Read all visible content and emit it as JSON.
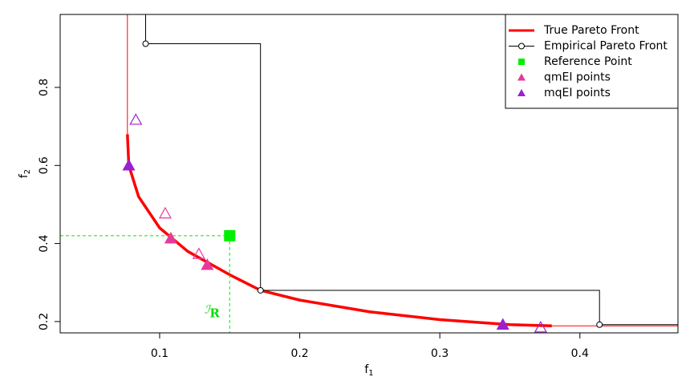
{
  "chart_data": {
    "type": "scatter",
    "xlabel": "f",
    "xlabel_sub": "1",
    "ylabel": "f",
    "ylabel_sub": "2",
    "xlim": [
      0.029,
      0.47
    ],
    "ylim": [
      0.171,
      0.987
    ],
    "xticks": [
      0.1,
      0.2,
      0.3,
      0.4
    ],
    "yticks": [
      0.2,
      0.4,
      0.6,
      0.8
    ],
    "legend": "top-right",
    "series": [
      {
        "name": "True Pareto Front",
        "color": "#ff0000",
        "marker": "line",
        "x": [
          0.077,
          0.078,
          0.085,
          0.1,
          0.12,
          0.15,
          0.172,
          0.2,
          0.25,
          0.3,
          0.35,
          0.38
        ],
        "y": [
          0.68,
          0.6,
          0.52,
          0.44,
          0.38,
          0.32,
          0.28,
          0.255,
          0.225,
          0.205,
          0.192,
          0.189
        ]
      },
      {
        "name": "Empirical Pareto Front",
        "color": "#000000",
        "marker": "step",
        "x": [
          0.09,
          0.172,
          0.414
        ],
        "y": [
          0.912,
          0.28,
          0.192
        ]
      },
      {
        "name": "Reference Point",
        "color": "#00ee00",
        "marker": "square",
        "x": [
          0.15
        ],
        "y": [
          0.42
        ]
      },
      {
        "name": "qmEI points",
        "color": "#e6399b",
        "marker": "triangle",
        "x": [
          0.108,
          0.134,
          0.104,
          0.128
        ],
        "y": [
          0.413,
          0.345,
          0.477,
          0.373
        ],
        "filled": [
          true,
          true,
          false,
          false
        ]
      },
      {
        "name": "mqEI points",
        "color": "#9a20d0",
        "marker": "triangle",
        "x": [
          0.078,
          0.345,
          0.083,
          0.372
        ],
        "y": [
          0.6,
          0.192,
          0.717,
          0.185
        ],
        "filled": [
          true,
          true,
          false,
          false
        ]
      }
    ],
    "annotation": {
      "text": "ℐ",
      "sub": "R",
      "x": 0.132,
      "y": 0.23,
      "color": "#00dd00"
    }
  }
}
